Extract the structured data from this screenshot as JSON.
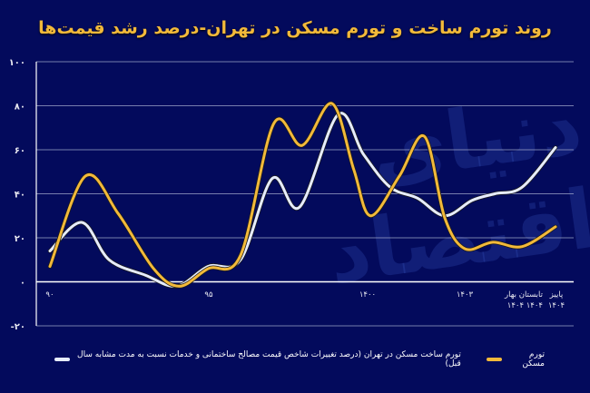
{
  "title": "روند تورم ساخت و تورم مسکن در تهران-درصد رشد قیمت‌ها",
  "watermark": "دنیای اقتصاد",
  "legend": {
    "housing_inflation": "تورم مسکن",
    "construction_inflation": "تورم ساخت مسکن در تهران (درصد تغییرات شاخص قیمت مصالح ساختمانی و خدمات نسبت به مدت مشابه سال قبل)"
  },
  "colors": {
    "background": "#030a5c",
    "housing": "#f2b93a",
    "construction": "#e6ecff",
    "grid": "#c8cce0",
    "title": "#f2b93a"
  },
  "y_ticks": [
    "۱۰۰",
    "۸۰",
    "۶۰",
    "۴۰",
    "۲۰",
    "۰",
    "-۲۰"
  ],
  "x_ticks": [
    {
      "label": "۹۰",
      "sub": ""
    },
    {
      "label": "۹۵",
      "sub": ""
    },
    {
      "label": "۱۴۰۰",
      "sub": ""
    },
    {
      "label": "۱۴۰۳",
      "sub": ""
    },
    {
      "label": "بهار",
      "sub": "۱۴۰۴"
    },
    {
      "label": "تابستان",
      "sub": "۱۴۰۴"
    },
    {
      "label": "پاییز",
      "sub": "۱۴۰۴"
    }
  ],
  "chart_data": {
    "type": "line",
    "title": "روند تورم ساخت و تورم مسکن در تهران-درصد رشد قیمت‌ها",
    "xlabel": "",
    "ylabel": "",
    "ylim": [
      -20,
      100
    ],
    "y_ticks": [
      100,
      80,
      60,
      40,
      20,
      0,
      -20
    ],
    "x_tick_labels": [
      "۹۰",
      "۹۵",
      "۱۴۰۰",
      "۱۴۰۳",
      "بهار ۱۴۰۴",
      "تابستان ۱۴۰۴",
      "پاییز ۱۴۰۴"
    ],
    "grid": true,
    "legend_position": "bottom",
    "series": [
      {
        "name": "تورم مسکن",
        "color": "#f2b93a",
        "x": [
          0,
          0.07,
          0.135,
          0.205,
          0.256,
          0.313,
          0.377,
          0.443,
          0.499,
          0.558,
          0.601,
          0.634,
          0.691,
          0.741,
          0.781,
          0.821,
          0.876,
          0.934,
          1.0
        ],
        "values": [
          7,
          48,
          31,
          6,
          -2,
          6,
          12,
          72,
          62,
          81,
          51,
          30,
          48,
          66,
          29,
          15,
          18,
          16,
          25
        ]
      },
      {
        "name": "تورم ساخت مسکن در تهران (درصد تغییرات شاخص قیمت مصالح ساختمانی و خدمات نسبت به مدت مشابه سال قبل)",
        "color": "#e6ecff",
        "x": [
          0,
          0.063,
          0.117,
          0.189,
          0.251,
          0.313,
          0.377,
          0.44,
          0.494,
          0.57,
          0.62,
          0.673,
          0.727,
          0.781,
          0.835,
          0.88,
          0.934,
          1.0
        ],
        "values": [
          14,
          27,
          10,
          3,
          -2,
          7,
          10,
          47,
          34,
          76,
          58,
          43,
          38,
          30,
          37,
          40,
          43,
          61
        ]
      }
    ]
  }
}
